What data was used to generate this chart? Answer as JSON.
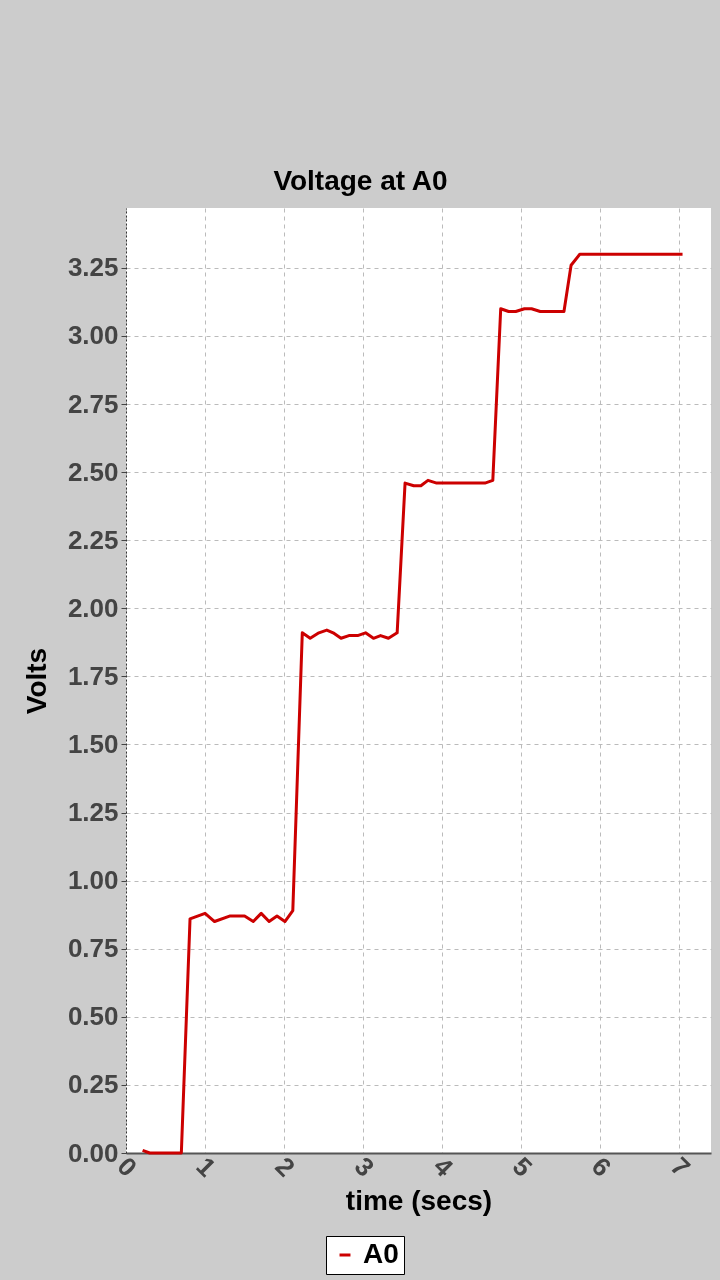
{
  "chart_data": {
    "type": "line",
    "title": "Voltage at A0",
    "xlabel": "time (secs)",
    "ylabel": "Volts",
    "xlim": [
      0,
      7.4
    ],
    "ylim": [
      0,
      3.47
    ],
    "xticks": [
      0,
      1,
      2,
      3,
      4,
      5,
      6,
      7
    ],
    "yticks": [
      {
        "value": 0,
        "label": "0.00"
      },
      0.25,
      {
        "value": 0.5,
        "label": "0.50"
      },
      0.75,
      {
        "value": 1,
        "label": "1.00"
      },
      1.25,
      {
        "value": 1.5,
        "label": "1.50"
      },
      1.75,
      {
        "value": 2,
        "label": "2.00"
      },
      2.25,
      {
        "value": 2.5,
        "label": "2.50"
      },
      2.75,
      {
        "value": 3,
        "label": "3.00"
      },
      3.25
    ],
    "grid": true,
    "legend": "bottom",
    "series": [
      {
        "name": "A0",
        "color": "#cc0000",
        "x": [
          0.21,
          0.3,
          0.7,
          0.81,
          1.0,
          1.12,
          1.31,
          1.5,
          1.61,
          1.71,
          1.81,
          1.91,
          2.01,
          2.11,
          2.23,
          2.33,
          2.44,
          2.54,
          2.62,
          2.72,
          2.82,
          2.93,
          3.03,
          3.13,
          3.22,
          3.32,
          3.43,
          3.53,
          3.64,
          3.73,
          3.82,
          3.93,
          4.54,
          4.64,
          4.74,
          4.84,
          4.93,
          5.04,
          5.13,
          5.24,
          5.54,
          5.63,
          5.74,
          7.04
        ],
        "values": [
          0.01,
          0,
          0,
          0.86,
          0.88,
          0.85,
          0.87,
          0.87,
          0.85,
          0.88,
          0.85,
          0.87,
          0.85,
          0.89,
          1.91,
          1.89,
          1.91,
          1.92,
          1.91,
          1.89,
          1.9,
          1.9,
          1.91,
          1.89,
          1.9,
          1.89,
          1.91,
          2.46,
          2.45,
          2.45,
          2.47,
          2.46,
          2.46,
          2.47,
          3.1,
          3.09,
          3.09,
          3.1,
          3.1,
          3.09,
          3.09,
          3.26,
          3.3,
          3.3
        ]
      }
    ]
  }
}
